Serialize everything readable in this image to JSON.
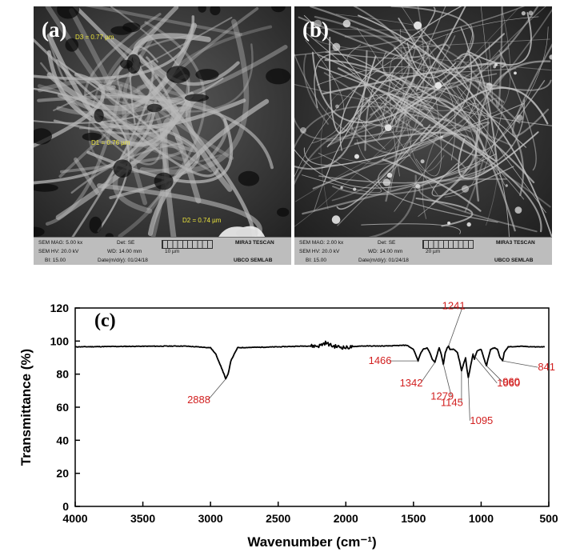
{
  "panel_a": {
    "label": "(a)",
    "measurements": [
      "D3 = 0.77 µm",
      "D1 = 0.76 µm",
      "D2 = 0.74 µm"
    ],
    "databar": {
      "sem_mag": "SEM MAG: 5.00 kx",
      "det": "Det: SE",
      "brand": "MIRA3 TESCAN",
      "sem_hv": "SEM HV: 20.0 kV",
      "wd": "WD: 14.00 mm",
      "scale": "10 µm",
      "bi": "BI: 15.00",
      "date": "Date(m/d/y): 01/24/18",
      "lab": "UBCO SEMLAB"
    }
  },
  "panel_b": {
    "label": "(b)",
    "databar": {
      "sem_mag": "SEM MAG: 2.00 kx",
      "det": "Det: SE",
      "brand": "MIRA3 TESCAN",
      "sem_hv": "SEM HV: 20.0 kV",
      "wd": "WD: 14.00 mm",
      "scale": "20 µm",
      "bi": "BI: 15.00",
      "date": "Date(m/d/y): 01/24/18",
      "lab": "UBCO SEMLAB"
    }
  },
  "chart_data": {
    "type": "line",
    "panel_label": "(c)",
    "xlabel": "Wavenumber (cm⁻¹)",
    "ylabel": "Transmittance (%)",
    "xlim": [
      4000,
      500
    ],
    "ylim": [
      0,
      120
    ],
    "x_ticks": [
      "4000",
      "3500",
      "3000",
      "2500",
      "2000",
      "1500",
      "1000",
      "500"
    ],
    "y_ticks": [
      "0",
      "20",
      "40",
      "60",
      "80",
      "100",
      "120"
    ],
    "grid": false,
    "line_color": "#000000",
    "label_color": "#d21f1f",
    "series": [
      {
        "x": [
          4000,
          3600,
          3200,
          3000,
          2960,
          2930,
          2900,
          2888,
          2870,
          2850,
          2800,
          2500,
          2300,
          2200,
          2150,
          2100,
          2000,
          1900,
          1700,
          1550,
          1500,
          1480,
          1466,
          1450,
          1430,
          1400,
          1380,
          1360,
          1342,
          1325,
          1310,
          1295,
          1279,
          1265,
          1250,
          1241,
          1230,
          1200,
          1175,
          1160,
          1145,
          1130,
          1115,
          1105,
          1095,
          1085,
          1070,
          1060,
          1050,
          1030,
          1000,
          985,
          970,
          960,
          950,
          930,
          900,
          880,
          860,
          841,
          830,
          800,
          700,
          600,
          530
        ],
        "y": [
          96.5,
          96.8,
          97,
          96,
          92,
          86,
          80,
          77,
          80,
          88,
          96,
          96.5,
          97,
          97,
          99,
          97,
          96,
          97,
          97,
          97.5,
          95,
          91,
          88,
          92,
          95,
          96,
          93,
          89,
          87,
          92,
          96,
          92,
          86,
          93,
          96,
          97,
          95,
          95,
          93,
          88,
          82,
          86,
          90,
          83,
          78,
          82,
          88,
          92,
          89,
          94,
          95,
          91,
          87,
          85,
          89,
          95,
          96,
          95,
          90,
          88,
          93,
          96.5,
          96.8,
          96.5,
          96.5
        ]
      }
    ],
    "annotations": [
      {
        "text": "2888",
        "x": 2888,
        "y": 77
      },
      {
        "text": "1466",
        "x": 1466,
        "y": 88
      },
      {
        "text": "1342",
        "x": 1342,
        "y": 87
      },
      {
        "text": "1279",
        "x": 1279,
        "y": 86
      },
      {
        "text": "1241",
        "x": 1241,
        "y": 97
      },
      {
        "text": "1145",
        "x": 1145,
        "y": 82
      },
      {
        "text": "1095",
        "x": 1095,
        "y": 78
      },
      {
        "text": "1060",
        "x": 1060,
        "y": 92
      },
      {
        "text": "960",
        "x": 960,
        "y": 85
      },
      {
        "text": "841",
        "x": 841,
        "y": 88
      }
    ]
  }
}
